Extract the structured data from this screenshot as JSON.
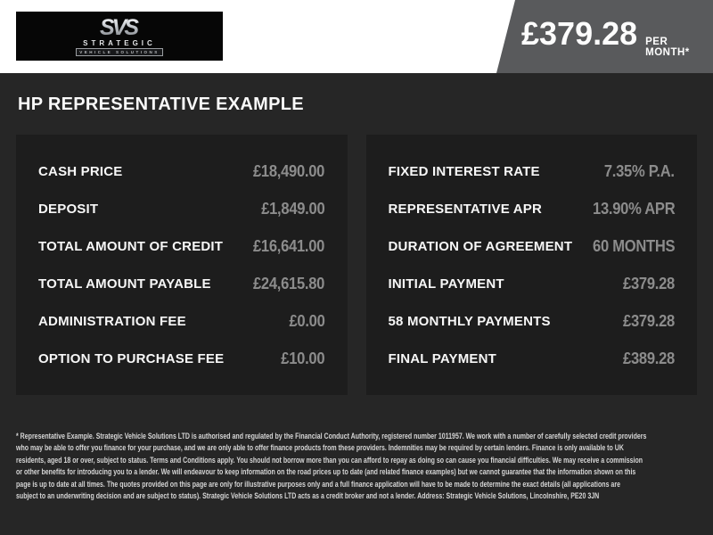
{
  "header": {
    "logo": {
      "monogram": "SVS",
      "name": "STRATEGIC",
      "subtext": "VEHICLE SOLUTIONS"
    },
    "price": {
      "amount": "£379.28",
      "period": "PER MONTH*"
    }
  },
  "title": "HP REPRESENTATIVE EXAMPLE",
  "finance": {
    "left": [
      {
        "label": "CASH PRICE",
        "value": "£18,490.00"
      },
      {
        "label": "DEPOSIT",
        "value": "£1,849.00"
      },
      {
        "label": "TOTAL AMOUNT OF CREDIT",
        "value": "£16,641.00"
      },
      {
        "label": "TOTAL AMOUNT PAYABLE",
        "value": "£24,615.80"
      },
      {
        "label": "ADMINISTRATION FEE",
        "value": "£0.00"
      },
      {
        "label": "OPTION TO PURCHASE FEE",
        "value": "£10.00"
      }
    ],
    "right": [
      {
        "label": "FIXED INTEREST RATE",
        "value": "7.35% P.A."
      },
      {
        "label": "REPRESENTATIVE APR",
        "value": "13.90% APR"
      },
      {
        "label": "DURATION OF AGREEMENT",
        "value": "60 MONTHS"
      },
      {
        "label": "INITIAL PAYMENT",
        "value": "£379.28"
      },
      {
        "label": "58 MONTHLY PAYMENTS",
        "value": "£379.28"
      },
      {
        "label": "FINAL PAYMENT",
        "value": "£389.28"
      }
    ]
  },
  "disclaimer": {
    "lines": [
      "* Representative Example. Strategic Vehicle Solutions LTD is authorised and regulated by the Financial Conduct Authority, registered number 1011957. We work with a number of carefully selected credit providers",
      "who may be able to offer you finance for your purchase, and we are only able to offer finance products from these providers. Indemnities may be required by certain lenders. Finance is only available to UK",
      "residents, aged 18 or over, subject to status. Terms and Conditions apply. You should not borrow more than you can afford to repay as doing so can cause you financial difficulties. We may receive a commission",
      "or other benefits for introducing you to a lender. We will endeavour to keep information on the road prices up to date (and related finance examples) but we cannot guarantee that the information shown on this",
      "page is up to date at all times. The quotes provided on this page are only for illustrative purposes only and a full finance application will have to be made to determine the exact details (all applications are",
      "subject to an underwriting decision and are subject to status). Strategic Vehicle Solutions LTD acts as a credit broker and not a lender. Address: Strategic Vehicle Solutions, Lincolnshire, PE20 3JN"
    ]
  },
  "colors": {
    "header_background": "#ffffff",
    "banner_gray": "#595a5c",
    "page_background": "#262626",
    "panel_background": "#1d1d1d",
    "label_text": "#f7f7f7",
    "value_text": "#8c8c8c"
  }
}
